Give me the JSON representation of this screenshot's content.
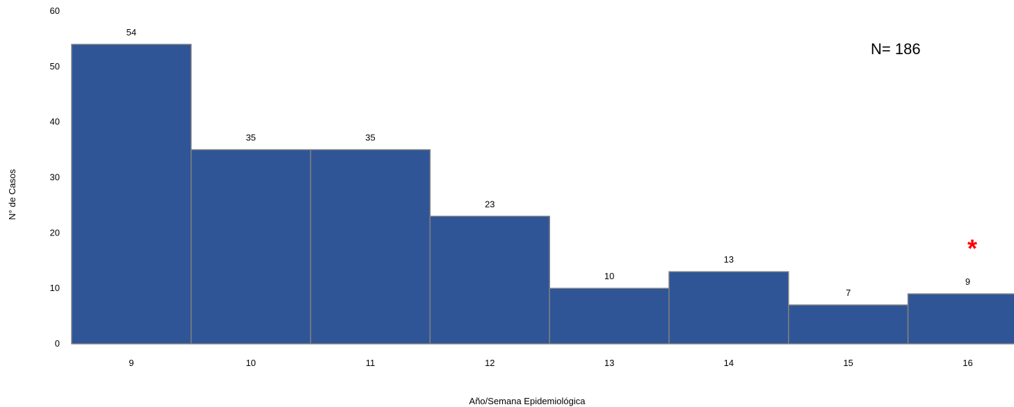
{
  "chart_data": {
    "type": "bar",
    "categories": [
      "9",
      "10",
      "11",
      "12",
      "13",
      "14",
      "15",
      "16"
    ],
    "values": [
      54,
      35,
      35,
      23,
      10,
      13,
      7,
      9
    ],
    "data_labels": [
      "54",
      "35",
      "35",
      "23",
      "10",
      "13",
      "7",
      "9"
    ],
    "xlabel": "Año/Semana Epidemiológica",
    "ylabel": "N° de Casos",
    "ylim": [
      0,
      60
    ],
    "yticks": [
      "0",
      "10",
      "20",
      "30",
      "40",
      "50",
      "60"
    ],
    "grid": false,
    "annotations": {
      "total": "N= 186",
      "marker": "*"
    },
    "colors": {
      "bar": "#2F5597",
      "bar_border": "#808080",
      "marker": "#FF0000"
    }
  }
}
